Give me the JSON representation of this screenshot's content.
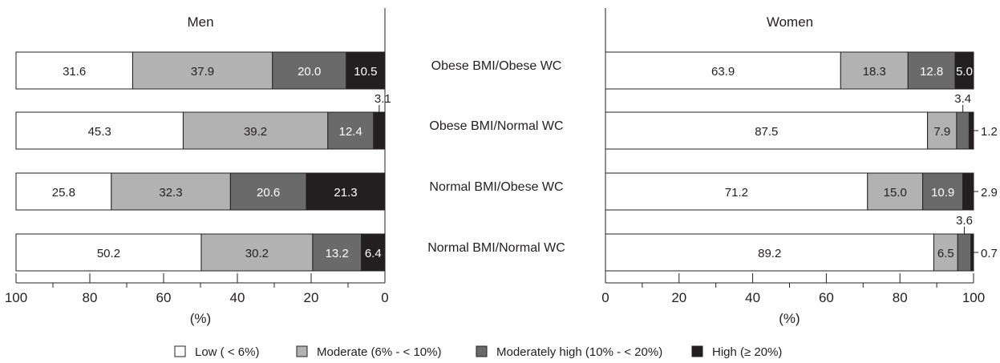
{
  "chart_data": [
    {
      "type": "bar",
      "orientation": "horizontal-stacked",
      "title": "Men",
      "xlabel": "(%)",
      "xlim": [
        100,
        0
      ],
      "x_reversed": true,
      "x_ticks": [
        "100",
        "80",
        "60",
        "40",
        "20",
        "0"
      ],
      "categories": [
        "Obese BMI/Obese WC",
        "Obese BMI/Normal WC",
        "Normal BMI/Obese WC",
        "Normal BMI/Normal WC"
      ],
      "series": [
        {
          "name": "High (≥ 20%)",
          "values": [
            10.5,
            3.1,
            21.3,
            6.4
          ]
        },
        {
          "name": "Moderately high (10% - < 20%)",
          "values": [
            20.0,
            12.4,
            20.6,
            13.2
          ]
        },
        {
          "name": "Moderate (6% - < 10%)",
          "values": [
            37.9,
            39.2,
            32.3,
            30.2
          ]
        },
        {
          "name": "Low ( < 6%)",
          "values": [
            31.6,
            45.3,
            25.8,
            50.2
          ]
        }
      ]
    },
    {
      "type": "bar",
      "orientation": "horizontal-stacked",
      "title": "Women",
      "xlabel": "(%)",
      "xlim": [
        0,
        100
      ],
      "x_reversed": false,
      "x_ticks": [
        "0",
        "20",
        "40",
        "60",
        "80",
        "100"
      ],
      "categories": [
        "Obese BMI/Obese WC",
        "Obese BMI/Normal WC",
        "Normal BMI/Obese WC",
        "Normal BMI/Normal WC"
      ],
      "series": [
        {
          "name": "Low ( < 6%)",
          "values": [
            63.9,
            87.5,
            71.2,
            89.2
          ]
        },
        {
          "name": "Moderate (6% - < 10%)",
          "values": [
            18.3,
            7.9,
            15.0,
            6.5
          ]
        },
        {
          "name": "Moderately high (10% - < 20%)",
          "values": [
            12.8,
            3.4,
            10.9,
            3.6
          ]
        },
        {
          "name": "High (≥ 20%)",
          "values": [
            5.0,
            1.2,
            2.9,
            0.7
          ]
        }
      ]
    }
  ],
  "legend": {
    "placement": "bottom",
    "items": [
      {
        "label": "Low ( < 6%)",
        "color": "#ffffff"
      },
      {
        "label": "Moderate (6% - < 10%)",
        "color": "#b2b2b2"
      },
      {
        "label": "Moderately high (10% - < 20%)",
        "color": "#6a6a6a"
      },
      {
        "label": "High (≥ 20%)",
        "color": "#231f20"
      }
    ]
  },
  "colors": {
    "Low ( < 6%)": "#ffffff",
    "Moderate (6% - < 10%)": "#b2b2b2",
    "Moderately high (10% - < 20%)": "#6a6a6a",
    "High (≥ 20%)": "#231f20"
  }
}
